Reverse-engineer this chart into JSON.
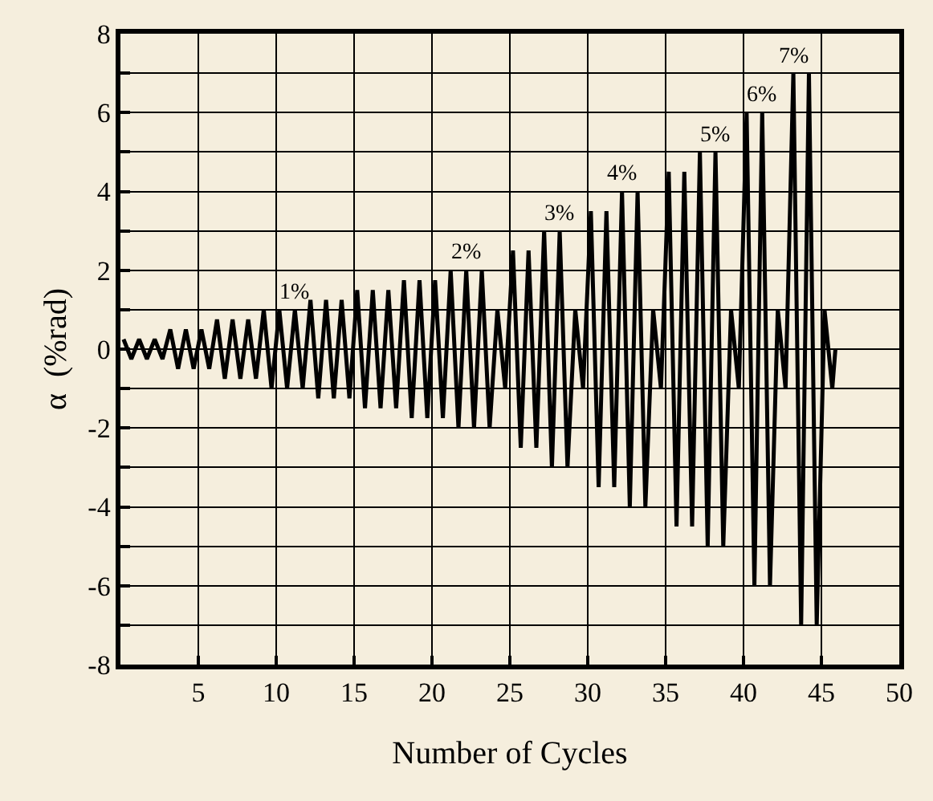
{
  "chart_data": {
    "type": "line",
    "xlabel": "Number of Cycles",
    "ylabel": "α  (%rad)",
    "xlim": [
      0,
      50
    ],
    "xticks": [
      {
        "value": 0,
        "label": null
      },
      5,
      10,
      15,
      20,
      25,
      30,
      35,
      40,
      45,
      50
    ],
    "ylim": [
      -8,
      8
    ],
    "yticks": [
      -8,
      {
        "value": -7,
        "label": null
      },
      -6,
      {
        "value": -5,
        "label": null
      },
      -4,
      {
        "value": -3,
        "label": null
      },
      -2,
      {
        "value": -1,
        "label": null
      },
      0,
      {
        "value": 1,
        "label": null
      },
      2,
      {
        "value": 3,
        "label": null
      },
      4,
      {
        "value": 5,
        "label": null
      },
      6,
      {
        "value": 7,
        "label": null
      },
      8
    ],
    "grid": true,
    "marker": "none",
    "line_style": "solid",
    "series": [
      {
        "color": "#000000",
        "x": [
          0.2,
          0.7,
          1.2,
          1.7,
          2.2,
          2.7,
          3.2,
          3.7,
          4.2,
          4.7,
          5.2,
          5.7,
          6.2,
          6.7,
          7.2,
          7.7,
          8.2,
          8.7,
          9.2,
          9.7,
          10.2,
          10.7,
          11.2,
          11.7,
          12.2,
          12.7,
          13.2,
          13.7,
          14.2,
          14.7,
          15.2,
          15.7,
          16.2,
          16.7,
          17.2,
          17.7,
          18.2,
          18.7,
          19.2,
          19.7,
          20.2,
          20.7,
          21.2,
          21.7,
          22.2,
          22.7,
          23.2,
          23.7,
          24.2,
          24.7,
          25.2,
          25.7,
          26.2,
          26.7,
          27.2,
          27.7,
          28.2,
          28.7,
          29.2,
          29.7,
          30.2,
          30.7,
          31.2,
          31.7,
          32.2,
          32.7,
          33.2,
          33.7,
          34.2,
          34.7,
          35.2,
          35.7,
          36.2,
          36.7,
          37.2,
          37.7,
          38.2,
          38.7,
          39.2,
          39.7,
          40.2,
          40.7,
          41.2,
          41.7,
          42.2,
          42.7,
          43.2,
          43.7,
          44.2,
          44.7,
          45.2,
          45.7,
          45.9
        ],
        "values": [
          0.25,
          -0.25,
          0.25,
          -0.25,
          0.25,
          -0.25,
          0.5,
          -0.5,
          0.5,
          -0.5,
          0.5,
          -0.5,
          0.75,
          -0.75,
          0.75,
          -0.75,
          0.75,
          -0.75,
          1,
          -1,
          1,
          -1,
          1,
          -1,
          1.25,
          -1.25,
          1.25,
          -1.25,
          1.25,
          -1.25,
          1.5,
          -1.5,
          1.5,
          -1.5,
          1.5,
          -1.5,
          1.75,
          -1.75,
          1.75,
          -1.75,
          1.75,
          -1.75,
          2,
          -2,
          2,
          -2,
          2,
          -2,
          1,
          -1,
          2.5,
          -2.5,
          2.5,
          -2.5,
          3,
          -3,
          3,
          -3,
          1,
          -1,
          3.5,
          -3.5,
          3.5,
          -3.5,
          4,
          -4,
          4,
          -4,
          1,
          -1,
          4.5,
          -4.5,
          4.5,
          -4.5,
          5,
          -5,
          5,
          -5,
          1,
          -1,
          6,
          -6,
          6,
          -6,
          1,
          -1,
          7,
          -7,
          7,
          -7,
          1,
          -1,
          0
        ]
      }
    ],
    "annotations": [
      {
        "text": "1%",
        "x": 11.2,
        "y": 1
      },
      {
        "text": "2%",
        "x": 22.2,
        "y": 2
      },
      {
        "text": "3%",
        "x": 28.2,
        "y": 3
      },
      {
        "text": "4%",
        "x": 32.2,
        "y": 4
      },
      {
        "text": "5%",
        "x": 38.2,
        "y": 5
      },
      {
        "text": "6%",
        "x": 41.2,
        "y": 6
      },
      {
        "text": "7%",
        "x": 43.2,
        "y": 7
      }
    ]
  }
}
